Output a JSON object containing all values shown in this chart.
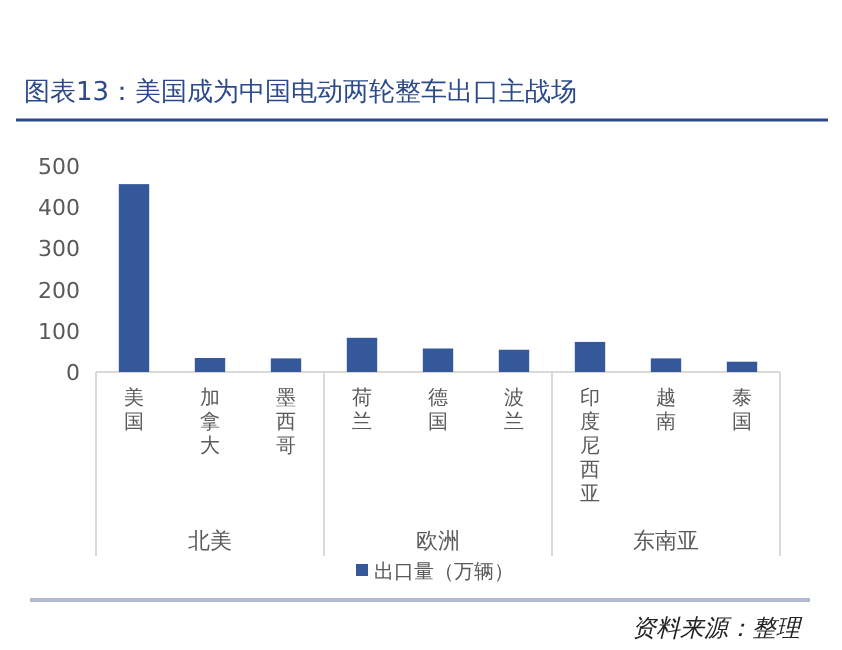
{
  "chart_data": {
    "type": "bar",
    "title": "图表13：美国成为中国电动两轮整车出口主战场",
    "categories": [
      "美国",
      "加拿大",
      "墨西哥",
      "荷兰",
      "德国",
      "波兰",
      "印度尼西亚",
      "越南",
      "泰国"
    ],
    "series": [
      {
        "name": "出口量（万辆）",
        "color": "#34589a",
        "values": [
          456,
          34,
          33,
          83,
          57,
          54,
          73,
          33,
          25
        ]
      }
    ],
    "ylim": [
      0,
      500
    ],
    "yticks": [
      0,
      100,
      200,
      300,
      400,
      500
    ],
    "grid": false,
    "legend": "bottom",
    "annotations": [
      "北美",
      "欧洲",
      "东南亚",
      "资料来源：整理"
    ]
  }
}
